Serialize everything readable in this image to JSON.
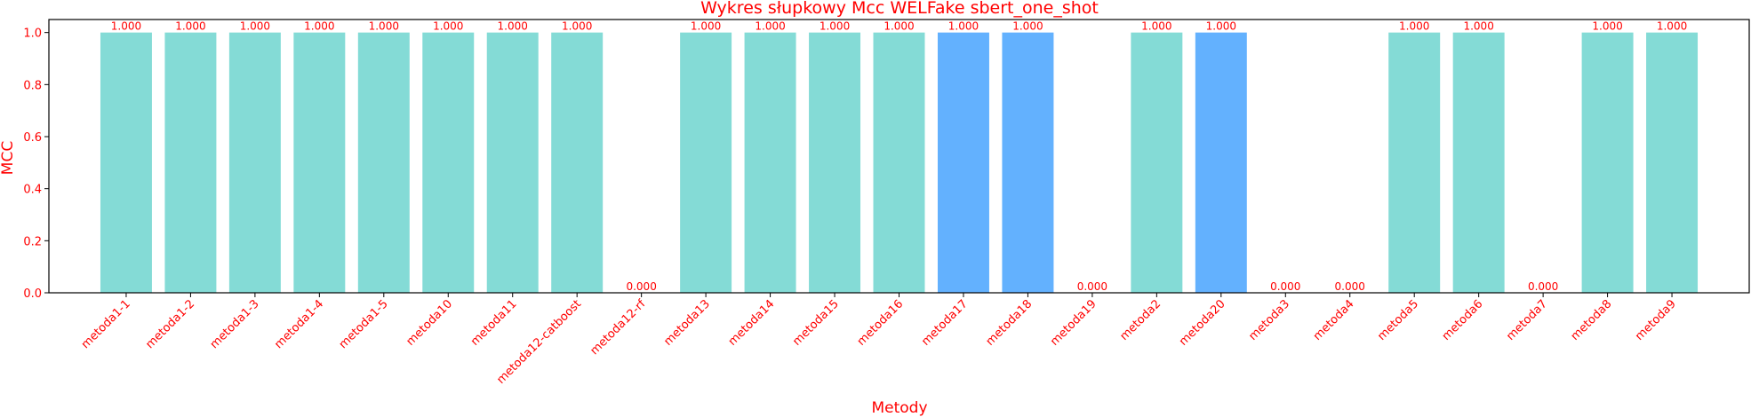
{
  "chart_data": {
    "type": "bar",
    "title": "Wykres słupkowy Mcc WELFake sbert_one_shot",
    "xlabel": "Metody",
    "ylabel": "MCC",
    "ylim": [
      0,
      1.05
    ],
    "yticks": [
      "0.0",
      "0.2",
      "0.4",
      "0.6",
      "0.8",
      "1.0"
    ],
    "grid": false,
    "categories": [
      "metoda1-1",
      "metoda1-2",
      "metoda1-3",
      "metoda1-4",
      "metoda1-5",
      "metoda10",
      "metoda11",
      "metoda12-catboost",
      "metoda12-rf",
      "metoda13",
      "metoda14",
      "metoda15",
      "metoda16",
      "metoda17",
      "metoda18",
      "metoda19",
      "metoda2",
      "metoda20",
      "metoda3",
      "metoda4",
      "metoda5",
      "metoda6",
      "metoda7",
      "metoda8",
      "metoda9"
    ],
    "values": [
      1.0,
      1.0,
      1.0,
      1.0,
      1.0,
      1.0,
      1.0,
      1.0,
      0.0,
      1.0,
      1.0,
      1.0,
      1.0,
      1.0,
      1.0,
      0.0,
      1.0,
      1.0,
      0.0,
      0.0,
      1.0,
      1.0,
      0.0,
      1.0,
      1.0
    ],
    "value_labels": [
      "1.000",
      "1.000",
      "1.000",
      "1.000",
      "1.000",
      "1.000",
      "1.000",
      "1.000",
      "0.000",
      "1.000",
      "1.000",
      "1.000",
      "1.000",
      "1.000",
      "1.000",
      "0.000",
      "1.000",
      "1.000",
      "0.000",
      "0.000",
      "1.000",
      "1.000",
      "0.000",
      "1.000",
      "1.000"
    ],
    "bar_colors": [
      "#84dbd6",
      "#84dbd6",
      "#84dbd6",
      "#84dbd6",
      "#84dbd6",
      "#84dbd6",
      "#84dbd6",
      "#84dbd6",
      "#84dbd6",
      "#84dbd6",
      "#84dbd6",
      "#84dbd6",
      "#84dbd6",
      "#63b1fe",
      "#63b1fe",
      "#84dbd6",
      "#84dbd6",
      "#63b1fe",
      "#84dbd6",
      "#84dbd6",
      "#84dbd6",
      "#84dbd6",
      "#84dbd6",
      "#84dbd6",
      "#84dbd6"
    ],
    "text_color": "#ff0000"
  }
}
